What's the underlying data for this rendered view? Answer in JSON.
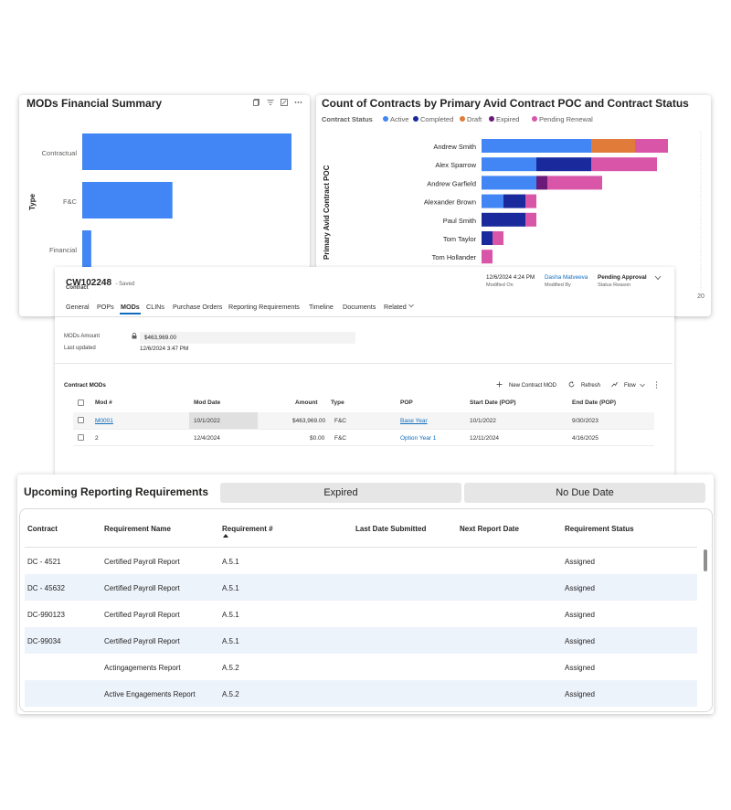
{
  "mods_summary": {
    "title": "MODs Financial Summary",
    "axis_label": "Type",
    "categories": [
      "Contractual",
      "F&C",
      "Financial"
    ]
  },
  "contracts_chart": {
    "title": "Count of Contracts by Primary Avid Contract POC and Contract Status",
    "legend_title": "Contract Status",
    "y_axis_label": "Primary Avid Contract POC",
    "x_tick_visible": "20"
  },
  "chart_data": [
    {
      "type": "bar",
      "orientation": "horizontal",
      "title": "MODs Financial Summary",
      "ylabel": "Type",
      "categories": [
        "Contractual",
        "F&C",
        "Financial"
      ],
      "values": [
        463969,
        200000,
        20000
      ]
    },
    {
      "type": "bar",
      "orientation": "horizontal",
      "stacked": true,
      "title": "Count of Contracts by Primary Avid Contract POC and Contract Status",
      "ylabel": "Primary Avid Contract POC",
      "legend_title": "Contract Status",
      "legend_position": "top-left",
      "categories": [
        "Andrew Smith",
        "Alex Sparrow",
        "Andrew Garfield",
        "Alexander Brown",
        "Paul Smith",
        "Tom Taylor",
        "Tom Hollander"
      ],
      "xlim": [
        0,
        20
      ],
      "series": [
        {
          "name": "Active",
          "color": "#4285f4",
          "values": [
            10,
            5,
            5,
            2,
            0,
            0,
            0
          ]
        },
        {
          "name": "Completed",
          "color": "#1a2a9c",
          "values": [
            0,
            5,
            0,
            2,
            4,
            1,
            0
          ]
        },
        {
          "name": "Draft",
          "color": "#e07b39",
          "values": [
            4,
            0,
            0,
            0,
            0,
            0,
            0
          ]
        },
        {
          "name": "Expired",
          "color": "#6a1b7a",
          "values": [
            0,
            0,
            1,
            0,
            0,
            0,
            0
          ]
        },
        {
          "name": "Pending Renewal",
          "color": "#d855a8",
          "values": [
            3,
            6,
            5,
            1,
            1,
            1,
            1
          ]
        }
      ]
    }
  ],
  "record": {
    "id": "CW102248",
    "saved_status": "- Saved",
    "entity": "Contract",
    "modified_on_value": "12/6/2024 4:24 PM",
    "modified_on_label": "Modified On",
    "modified_by_value": "Dasha Matveeva",
    "modified_by_label": "Modified By",
    "status_value": "Pending Approval",
    "status_label": "Status Reason"
  },
  "tabs": [
    "General",
    "POPs",
    "MODs",
    "CLINs",
    "Purchase Orders",
    "Reporting Requirements",
    "Timeline",
    "Documents",
    "Related"
  ],
  "mods_panel": {
    "amount_label": "MODs Amount",
    "amount_value": "$463,969.00",
    "updated_label": "Last updated",
    "updated_value": "12/6/2024 3:47 PM"
  },
  "contract_mods": {
    "title": "Contract MODs",
    "new_label": "New Contract MOD",
    "refresh_label": "Refresh",
    "flow_label": "Flow",
    "headers": [
      "Mod #",
      "Mod Date",
      "Amount",
      "Type",
      "POP",
      "Start Date (POP)",
      "End Date (POP)"
    ],
    "rows": [
      {
        "mod": "M0001",
        "date": "10/1/2022",
        "amount": "$463,969.00",
        "type": "F&C",
        "pop": "Base Year",
        "start": "10/1/2022",
        "end": "9/30/2023"
      },
      {
        "mod": "2",
        "date": "12/4/2024",
        "amount": "$0.00",
        "type": "F&C",
        "pop": "Option Year 1",
        "start": "12/11/2024",
        "end": "4/16/2025"
      }
    ]
  },
  "reporting": {
    "title": "Upcoming Reporting Requirements",
    "filter_expired": "Expired",
    "filter_no_due": "No Due Date",
    "headers": [
      "Contract",
      "Requirement Name",
      "Requirement #",
      "Last Date Submitted",
      "Next Report Date",
      "Requirement Status"
    ],
    "rows": [
      {
        "contract": "DC - 4521",
        "name": "Certified Payroll Report",
        "num": "A.5.1",
        "status": "Assigned"
      },
      {
        "contract": "DC - 45632",
        "name": "Certified Payroll Report",
        "num": "A.5.1",
        "status": "Assigned"
      },
      {
        "contract": "DC-990123",
        "name": "Certified Payroll Report",
        "num": "A.5.1",
        "status": "Assigned"
      },
      {
        "contract": "DC-99034",
        "name": "Certified Payroll Report",
        "num": "A.5.1",
        "status": "Assigned"
      },
      {
        "contract": "",
        "name": "Actingagements Report",
        "num": "A.5.2",
        "status": "Assigned"
      },
      {
        "contract": "",
        "name": "Active Engagements Report",
        "num": "A.5.2",
        "status": "Assigned"
      }
    ]
  }
}
